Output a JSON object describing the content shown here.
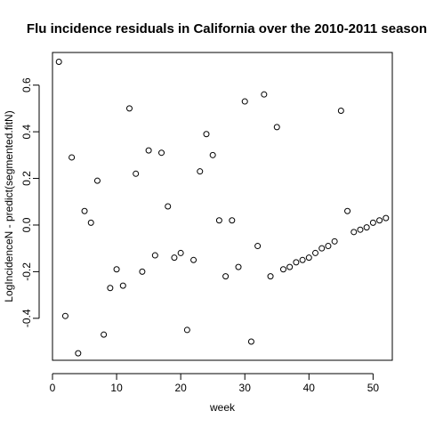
{
  "chart_data": {
    "type": "scatter",
    "title": "Flu incidence residuals in California over the 2010-2011 season",
    "xlabel": "week",
    "ylabel": "LogIncidenceN - predict(segmented.fitN)",
    "xlim": [
      0,
      53
    ],
    "ylim": [
      -0.58,
      0.74
    ],
    "x_ticks": [
      0,
      10,
      20,
      30,
      40,
      50
    ],
    "y_ticks": [
      -0.4,
      -0.2,
      0.0,
      0.2,
      0.4,
      0.6
    ],
    "y_tick_labels": [
      "-0.4",
      "-0.2",
      "0.0",
      "0.2",
      "0.4",
      "0.6"
    ],
    "grid": false,
    "marker": "open-circle",
    "points": [
      {
        "x": 1,
        "y": 0.7
      },
      {
        "x": 2,
        "y": -0.39
      },
      {
        "x": 3,
        "y": 0.29
      },
      {
        "x": 4,
        "y": -0.55
      },
      {
        "x": 5,
        "y": 0.06
      },
      {
        "x": 6,
        "y": 0.01
      },
      {
        "x": 7,
        "y": 0.19
      },
      {
        "x": 8,
        "y": -0.47
      },
      {
        "x": 9,
        "y": -0.27
      },
      {
        "x": 10,
        "y": -0.19
      },
      {
        "x": 11,
        "y": -0.26
      },
      {
        "x": 12,
        "y": 0.5
      },
      {
        "x": 13,
        "y": 0.22
      },
      {
        "x": 14,
        "y": -0.2
      },
      {
        "x": 15,
        "y": 0.32
      },
      {
        "x": 16,
        "y": -0.13
      },
      {
        "x": 17,
        "y": 0.31
      },
      {
        "x": 18,
        "y": 0.08
      },
      {
        "x": 19,
        "y": -0.14
      },
      {
        "x": 20,
        "y": -0.12
      },
      {
        "x": 21,
        "y": -0.45
      },
      {
        "x": 22,
        "y": -0.15
      },
      {
        "x": 23,
        "y": 0.23
      },
      {
        "x": 24,
        "y": 0.39
      },
      {
        "x": 25,
        "y": 0.3
      },
      {
        "x": 26,
        "y": 0.02
      },
      {
        "x": 27,
        "y": -0.22
      },
      {
        "x": 28,
        "y": 0.02
      },
      {
        "x": 29,
        "y": -0.18
      },
      {
        "x": 30,
        "y": 0.53
      },
      {
        "x": 31,
        "y": -0.5
      },
      {
        "x": 32,
        "y": -0.09
      },
      {
        "x": 33,
        "y": 0.56
      },
      {
        "x": 34,
        "y": -0.22
      },
      {
        "x": 35,
        "y": 0.42
      },
      {
        "x": 36,
        "y": -0.19
      },
      {
        "x": 37,
        "y": -0.18
      },
      {
        "x": 38,
        "y": -0.16
      },
      {
        "x": 39,
        "y": -0.15
      },
      {
        "x": 40,
        "y": -0.14
      },
      {
        "x": 41,
        "y": -0.12
      },
      {
        "x": 42,
        "y": -0.1
      },
      {
        "x": 43,
        "y": -0.09
      },
      {
        "x": 44,
        "y": -0.07
      },
      {
        "x": 45,
        "y": 0.49
      },
      {
        "x": 46,
        "y": 0.06
      },
      {
        "x": 47,
        "y": -0.03
      },
      {
        "x": 48,
        "y": -0.02
      },
      {
        "x": 49,
        "y": -0.01
      },
      {
        "x": 50,
        "y": 0.01
      },
      {
        "x": 51,
        "y": 0.02
      },
      {
        "x": 52,
        "y": 0.03
      }
    ]
  }
}
